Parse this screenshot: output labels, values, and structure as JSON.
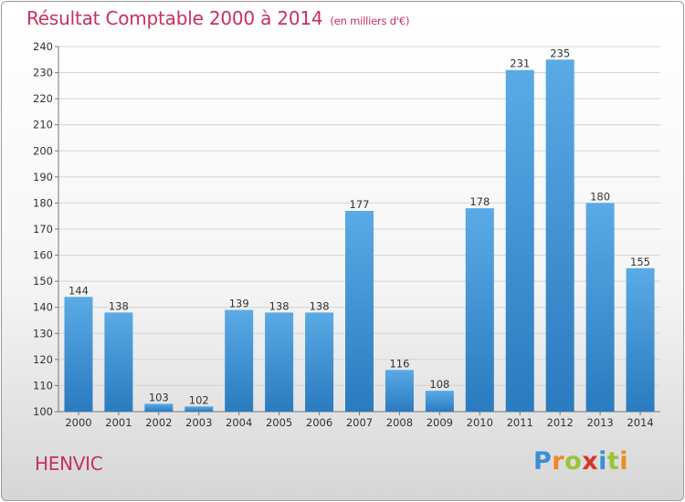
{
  "title": "Résultat Comptable 2000 à 2014",
  "subtitle": "(en milliers d'€)",
  "commune": "HENVIC",
  "logo": {
    "letters": [
      "P",
      "r",
      "o",
      "x",
      "i",
      "t",
      "i"
    ],
    "colors": [
      "#3a8fd6",
      "#ef8a1e",
      "#9bc43a",
      "#d9342b",
      "#3a8fd6",
      "#9bc43a",
      "#ef8a1e"
    ]
  },
  "colors": {
    "accent": "#c8305a",
    "bar_top": "#5aaae6",
    "bar_bottom": "#2a7bbf",
    "grid": "#d4d4d4",
    "text": "#333333"
  },
  "chart_data": {
    "type": "bar",
    "categories": [
      "2000",
      "2001",
      "2002",
      "2003",
      "2004",
      "2005",
      "2006",
      "2007",
      "2008",
      "2009",
      "2010",
      "2011",
      "2012",
      "2013",
      "2014"
    ],
    "values": [
      144,
      138,
      103,
      102,
      139,
      138,
      138,
      177,
      116,
      108,
      178,
      231,
      235,
      180,
      155
    ],
    "ylim": [
      100,
      240
    ],
    "yticks": [
      100,
      110,
      120,
      130,
      140,
      150,
      160,
      170,
      180,
      190,
      200,
      210,
      220,
      230,
      240
    ],
    "grid": true,
    "legend": "none",
    "data_labels": true
  }
}
